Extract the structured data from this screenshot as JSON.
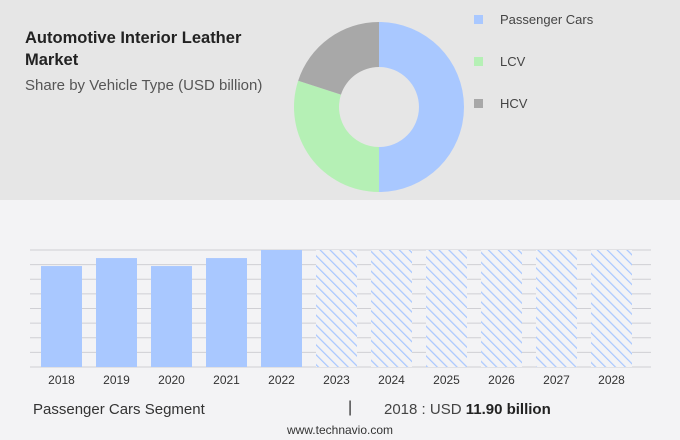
{
  "header": {
    "title": "Automotive Interior Leather Market",
    "subtitle": "Share by Vehicle Type (USD billion)"
  },
  "chart_data": [
    {
      "type": "pie",
      "donut": true,
      "slices": [
        {
          "label": "Passenger Cars",
          "value": 50,
          "color": "#a9c8ff"
        },
        {
          "label": "LCV",
          "value": 30,
          "color": "#b5f0b5"
        },
        {
          "label": "HCV",
          "value": 20,
          "color": "#a8a8a8"
        }
      ],
      "legend": "right"
    },
    {
      "type": "bar",
      "categories": [
        "2018",
        "2019",
        "2020",
        "2021",
        "2022",
        "2023",
        "2024",
        "2025",
        "2026",
        "2027",
        "2028"
      ],
      "values": [
        11.9,
        12.84,
        11.9,
        12.84,
        13.79,
        null,
        null,
        null,
        null,
        null,
        null
      ],
      "forecast_years": [
        "2023",
        "2024",
        "2025",
        "2026",
        "2027",
        "2028"
      ],
      "bar_color": "#a9c8ff",
      "grid": true
    }
  ],
  "footer": {
    "segment": "Passenger Cars Segment",
    "separator": "|",
    "value_prefix": "2018 : USD ",
    "value": "11.90 billion",
    "site": "www.technavio.com"
  }
}
